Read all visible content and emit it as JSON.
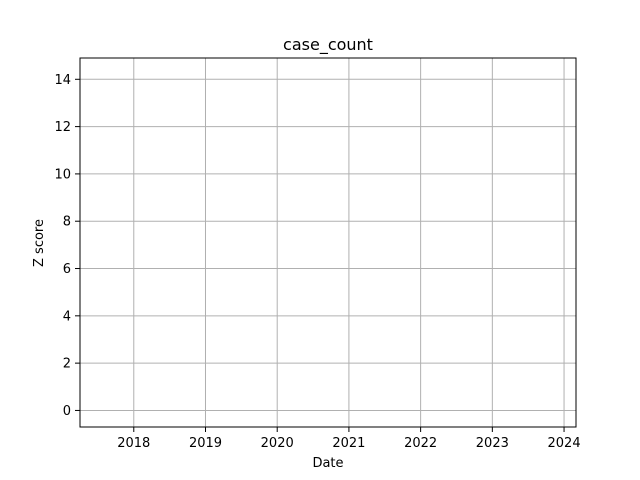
{
  "chart_data": {
    "type": "line",
    "title": "case_count",
    "xlabel": "Date",
    "ylabel": "Z score",
    "x_ticks": [
      "2018",
      "2019",
      "2020",
      "2021",
      "2022",
      "2023",
      "2024"
    ],
    "y_ticks": [
      "0",
      "2",
      "4",
      "6",
      "8",
      "10",
      "12",
      "14"
    ],
    "xlim": [
      "2017-04",
      "2024-03"
    ],
    "ylim": [
      -0.7,
      14.9
    ],
    "grid": true,
    "series": []
  },
  "colors": {
    "grid": "#b0b0b0",
    "axes": "#000000",
    "background": "#ffffff"
  }
}
